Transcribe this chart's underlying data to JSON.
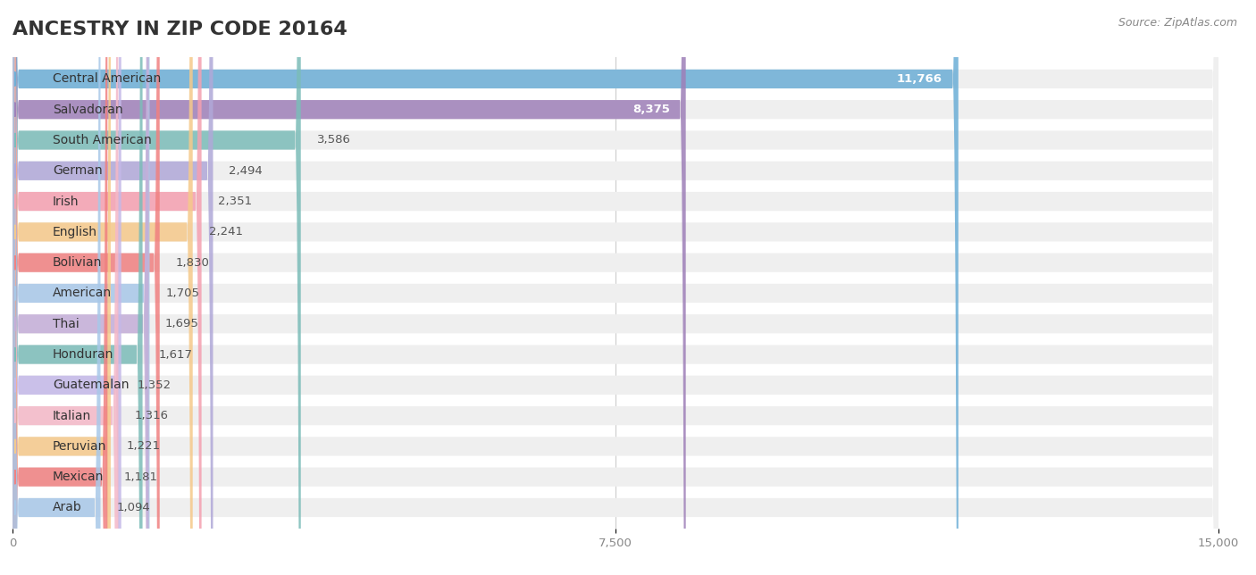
{
  "title": "ANCESTRY IN ZIP CODE 20164",
  "source": "Source: ZipAtlas.com",
  "categories": [
    "Central American",
    "Salvadoran",
    "South American",
    "German",
    "Irish",
    "English",
    "Bolivian",
    "American",
    "Thai",
    "Honduran",
    "Guatemalan",
    "Italian",
    "Peruvian",
    "Mexican",
    "Arab"
  ],
  "values": [
    11766,
    8375,
    3586,
    2494,
    2351,
    2241,
    1830,
    1705,
    1695,
    1617,
    1352,
    1316,
    1221,
    1181,
    1094
  ],
  "bar_colors": [
    "#6baed6",
    "#9e7fb8",
    "#7bbcb8",
    "#b0a8d8",
    "#f4a0b0",
    "#f5c98a",
    "#f08080",
    "#a8c8e8",
    "#c4aed8",
    "#7bbcb8",
    "#c4b8e8",
    "#f4b8c8",
    "#f5c98a",
    "#f08080",
    "#a8c8e8"
  ],
  "xlim": [
    0,
    15000
  ],
  "xticks": [
    0,
    7500,
    15000
  ],
  "background_color": "#ffffff",
  "bar_bg_color": "#efefef",
  "title_fontsize": 16,
  "label_fontsize": 10,
  "value_fontsize": 9.5,
  "inside_threshold": 4000
}
